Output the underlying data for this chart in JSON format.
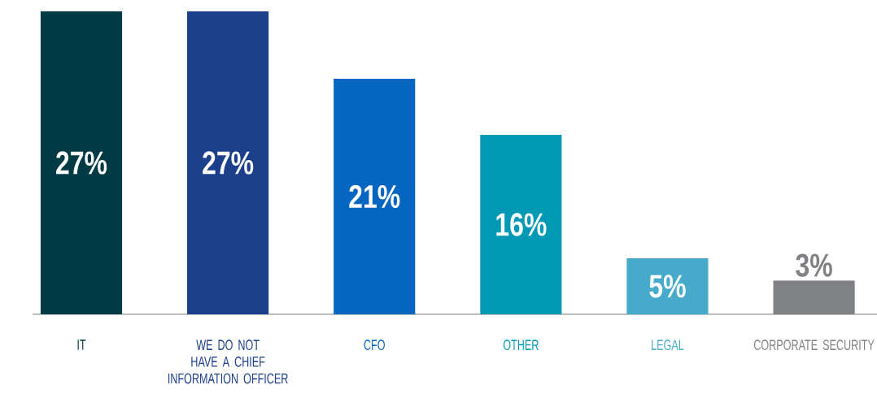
{
  "chart_data": {
    "type": "bar",
    "categories": [
      "IT",
      "WE DO NOT HAVE A CHIEF INFORMATION OFFICER",
      "CFO",
      "OTHER",
      "LEGAL",
      "CORPORATE SECURITY"
    ],
    "values": [
      27,
      27,
      21,
      16,
      5,
      3
    ],
    "colors": [
      "#003b45",
      "#1b3f8b",
      "#0466c0",
      "#0099b5",
      "#46aacb",
      "#808184"
    ],
    "value_labels": [
      "27%",
      "27%",
      "21%",
      "16%",
      "5%",
      "3%"
    ]
  }
}
